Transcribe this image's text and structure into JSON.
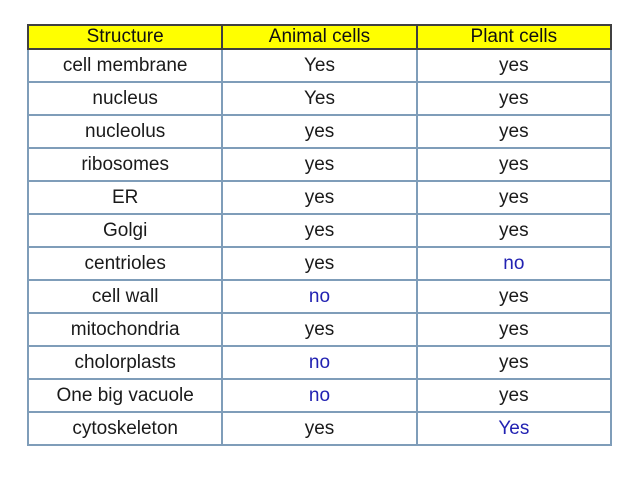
{
  "colors": {
    "header_bg": "#FFFF00",
    "header_border": "#404040",
    "body_border": "#7F9DB9",
    "text_default": "#1A1A1A",
    "text_highlight": "#2222B2",
    "background": "#FFFFFF"
  },
  "chart_data": {
    "type": "table",
    "title": "",
    "columns": [
      "Structure",
      "Animal cells",
      "Plant cells"
    ],
    "rows": [
      [
        "cell membrane",
        "Yes",
        "yes"
      ],
      [
        "nucleus",
        "Yes",
        "yes"
      ],
      [
        "nucleolus",
        "yes",
        "yes"
      ],
      [
        "ribosomes",
        "yes",
        "yes"
      ],
      [
        "ER",
        "yes",
        "yes"
      ],
      [
        "Golgi",
        "yes",
        "yes"
      ],
      [
        "centrioles",
        "yes",
        "no"
      ],
      [
        "cell wall",
        "no",
        "yes"
      ],
      [
        "mitochondria",
        "yes",
        "yes"
      ],
      [
        "cholorplasts",
        "no",
        "yes"
      ],
      [
        "One big vacuole",
        "no",
        "yes"
      ],
      [
        "cytoskeleton",
        "yes",
        "Yes"
      ]
    ]
  },
  "table": {
    "headers": [
      {
        "text": "Structure"
      },
      {
        "text": "Animal cells"
      },
      {
        "text": "Plant cells"
      }
    ],
    "rows": [
      {
        "cells": [
          {
            "text": "cell membrane",
            "color": "#1A1A1A"
          },
          {
            "text": "Yes",
            "color": "#1A1A1A"
          },
          {
            "text": "yes",
            "color": "#1A1A1A"
          }
        ]
      },
      {
        "cells": [
          {
            "text": "nucleus",
            "color": "#1A1A1A"
          },
          {
            "text": "Yes",
            "color": "#1A1A1A"
          },
          {
            "text": "yes",
            "color": "#1A1A1A"
          }
        ]
      },
      {
        "cells": [
          {
            "text": "nucleolus",
            "color": "#1A1A1A"
          },
          {
            "text": "yes",
            "color": "#1A1A1A"
          },
          {
            "text": "yes",
            "color": "#1A1A1A"
          }
        ]
      },
      {
        "cells": [
          {
            "text": "ribosomes",
            "color": "#1A1A1A"
          },
          {
            "text": "yes",
            "color": "#1A1A1A"
          },
          {
            "text": "yes",
            "color": "#1A1A1A"
          }
        ]
      },
      {
        "cells": [
          {
            "text": "ER",
            "color": "#1A1A1A"
          },
          {
            "text": "yes",
            "color": "#1A1A1A"
          },
          {
            "text": "yes",
            "color": "#1A1A1A"
          }
        ]
      },
      {
        "cells": [
          {
            "text": "Golgi",
            "color": "#1A1A1A"
          },
          {
            "text": "yes",
            "color": "#1A1A1A"
          },
          {
            "text": "yes",
            "color": "#1A1A1A"
          }
        ]
      },
      {
        "cells": [
          {
            "text": "centrioles",
            "color": "#1A1A1A"
          },
          {
            "text": "yes",
            "color": "#1A1A1A"
          },
          {
            "text": "no",
            "color": "#2222B2"
          }
        ]
      },
      {
        "cells": [
          {
            "text": "cell wall",
            "color": "#1A1A1A"
          },
          {
            "text": "no",
            "color": "#2222B2"
          },
          {
            "text": "yes",
            "color": "#1A1A1A"
          }
        ]
      },
      {
        "cells": [
          {
            "text": "mitochondria",
            "color": "#1A1A1A"
          },
          {
            "text": "yes",
            "color": "#1A1A1A"
          },
          {
            "text": "yes",
            "color": "#1A1A1A"
          }
        ]
      },
      {
        "cells": [
          {
            "text": "cholorplasts",
            "color": "#1A1A1A"
          },
          {
            "text": "no",
            "color": "#2222B2"
          },
          {
            "text": "yes",
            "color": "#1A1A1A"
          }
        ]
      },
      {
        "cells": [
          {
            "text": "One big vacuole",
            "color": "#1A1A1A"
          },
          {
            "text": "no",
            "color": "#2222B2"
          },
          {
            "text": "yes",
            "color": "#1A1A1A"
          }
        ]
      },
      {
        "cells": [
          {
            "text": "cytoskeleton",
            "color": "#1A1A1A"
          },
          {
            "text": "yes",
            "color": "#1A1A1A"
          },
          {
            "text": "Yes",
            "color": "#2222B2"
          }
        ]
      }
    ]
  }
}
